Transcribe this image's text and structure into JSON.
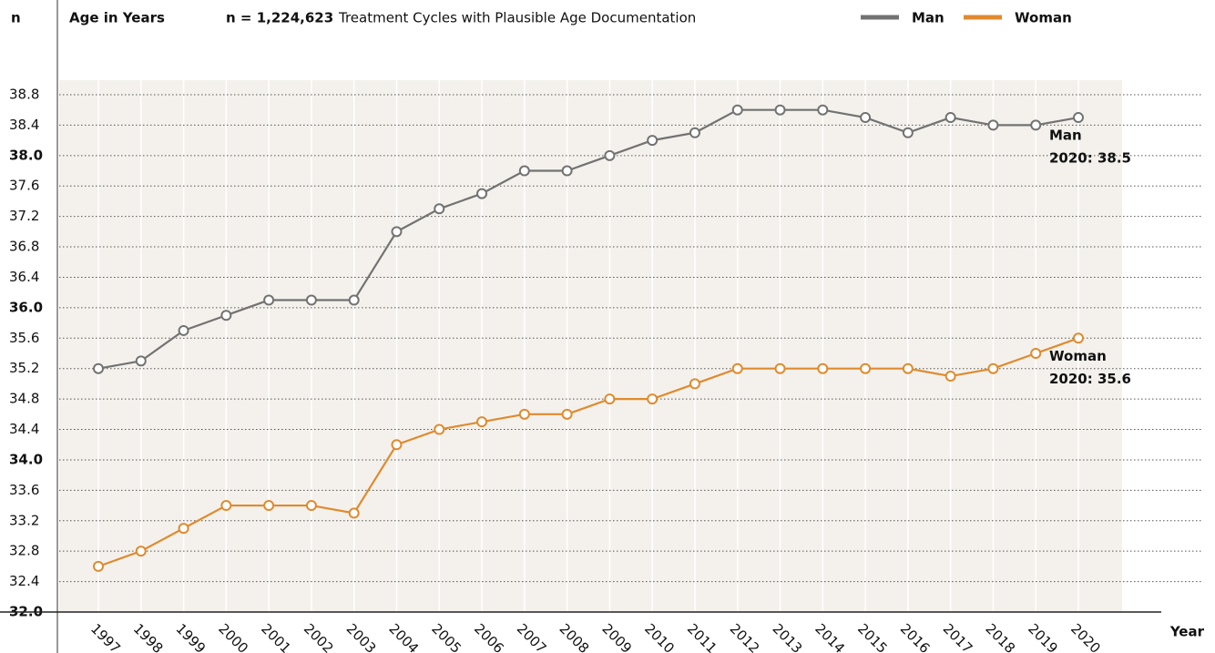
{
  "chart_data": {
    "type": "line",
    "axis_header": "n",
    "title": "Age in Years",
    "subtitle_bold": "n = 1,224,623",
    "subtitle": "Treatment Cycles with Plausible Age Documentation",
    "x_label": "Year",
    "categories": [
      "1997",
      "1998",
      "1999",
      "2000",
      "2001",
      "2002",
      "2003",
      "2004",
      "2005",
      "2006",
      "2007",
      "2008",
      "2009",
      "2010",
      "2011",
      "2012",
      "2013",
      "2014",
      "2015",
      "2016",
      "2017",
      "2018",
      "2019",
      "2020"
    ],
    "series": [
      {
        "name": "Man",
        "color": "#727272",
        "values": [
          35.2,
          35.3,
          35.7,
          35.9,
          36.1,
          36.1,
          36.1,
          37.0,
          37.3,
          37.5,
          37.8,
          37.8,
          38.0,
          38.2,
          38.3,
          38.6,
          38.6,
          38.6,
          38.5,
          38.3,
          38.5,
          38.4,
          38.4,
          38.5
        ]
      },
      {
        "name": "Woman",
        "color": "#e08a2e",
        "values": [
          32.6,
          32.8,
          33.1,
          33.4,
          33.4,
          33.4,
          33.3,
          34.2,
          34.4,
          34.5,
          34.6,
          34.6,
          34.8,
          34.8,
          35.0,
          35.2,
          35.2,
          35.2,
          35.2,
          35.2,
          35.1,
          35.2,
          35.4,
          35.6
        ]
      }
    ],
    "annotations": [
      {
        "series": 0,
        "lines": [
          "Man",
          "2020: 38.5"
        ]
      },
      {
        "series": 1,
        "lines": [
          "Woman",
          "2020: 35.6"
        ]
      }
    ],
    "ylim": [
      32,
      38.8
    ],
    "yticks": [
      {
        "value": 32,
        "label": "32.0"
      },
      {
        "value": 32.4,
        "label": "32.4"
      },
      {
        "value": 32.8,
        "label": "32.8"
      },
      {
        "value": 33.2,
        "label": "33.2"
      },
      {
        "value": 33.6,
        "label": "33.6"
      },
      {
        "value": 34,
        "label": "34.0"
      },
      {
        "value": 34.4,
        "label": "34.4"
      },
      {
        "value": 34.8,
        "label": "34.8"
      },
      {
        "value": 35.2,
        "label": "35.2"
      },
      {
        "value": 35.6,
        "label": "35.6"
      },
      {
        "value": 36,
        "label": "36.0"
      },
      {
        "value": 36.4,
        "label": "36.4"
      },
      {
        "value": 36.8,
        "label": "36.8"
      },
      {
        "value": 37.2,
        "label": "37.2"
      },
      {
        "value": 37.6,
        "label": "37.6"
      },
      {
        "value": 38,
        "label": "38.0"
      },
      {
        "value": 38.4,
        "label": "38.4"
      },
      {
        "value": 38.8,
        "label": "38.8"
      }
    ],
    "grid": true
  }
}
